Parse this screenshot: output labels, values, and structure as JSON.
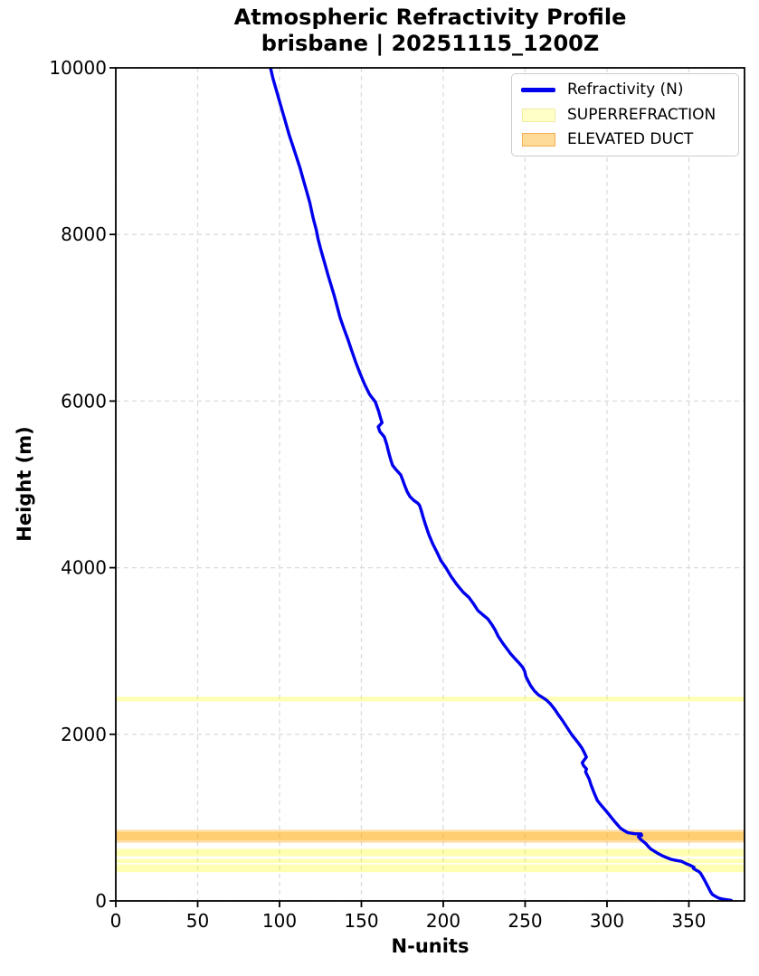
{
  "chart_data": {
    "type": "line",
    "title": "Atmospheric Refractivity Profile",
    "subtitle": "brisbane | 20251115_1200Z",
    "xlabel": "N-units",
    "ylabel": "Height (m)",
    "xlim": [
      0,
      384
    ],
    "ylim": [
      0,
      10000
    ],
    "xticks": [
      0,
      50,
      100,
      150,
      200,
      250,
      300,
      350
    ],
    "yticks": [
      0,
      2000,
      4000,
      6000,
      8000,
      10000
    ],
    "grid": true,
    "grid_color": "#dcdcdc",
    "axis_color": "#000000",
    "background": "#ffffff",
    "legend": [
      {
        "label": "Refractivity (N)",
        "swatch": "line",
        "color": "#0000ee"
      },
      {
        "label": "SUPERREFRACTION",
        "swatch": "patch",
        "fill": "rgba(255,255,0,0.22)",
        "edge": "#f0ec9f"
      },
      {
        "label": "ELEVATED DUCT",
        "swatch": "patch",
        "fill": "rgba(255,165,0,0.40)",
        "edge": "#f2ae55"
      }
    ],
    "band_colors": {
      "superrefraction": "rgba(255,255,0,0.30)",
      "elevated_duct": "rgba(255,165,0,0.33)"
    },
    "bands": [
      {
        "type": "superrefraction",
        "bottom": 2396,
        "top": 2450
      },
      {
        "type": "superrefraction",
        "bottom": 535,
        "top": 625
      },
      {
        "type": "superrefraction",
        "bottom": 455,
        "top": 505
      },
      {
        "type": "superrefraction",
        "bottom": 345,
        "top": 438
      },
      {
        "type": "elevated_duct",
        "bottom": 698,
        "top": 828
      },
      {
        "type": "elevated_duct",
        "bottom": 726,
        "top": 856
      }
    ],
    "series": [
      {
        "name": "Refractivity (N)",
        "color": "#0000ee",
        "line_width": 3.4,
        "points": [
          [
            94.5,
            10000
          ],
          [
            96,
            9870
          ],
          [
            98.5,
            9700
          ],
          [
            101,
            9530
          ],
          [
            103.5,
            9360
          ],
          [
            106,
            9190
          ],
          [
            108.5,
            9040
          ],
          [
            110.5,
            8920
          ],
          [
            112.5,
            8800
          ],
          [
            114.5,
            8660
          ],
          [
            116.5,
            8520
          ],
          [
            118.5,
            8380
          ],
          [
            120.5,
            8200
          ],
          [
            122.5,
            8050
          ],
          [
            123.5,
            7950
          ],
          [
            125.5,
            7800
          ],
          [
            127.5,
            7660
          ],
          [
            129.5,
            7520
          ],
          [
            131.5,
            7390
          ],
          [
            133.5,
            7260
          ],
          [
            135,
            7150
          ],
          [
            137,
            7000
          ],
          [
            139.5,
            6860
          ],
          [
            141.8,
            6740
          ],
          [
            144,
            6610
          ],
          [
            146.5,
            6470
          ],
          [
            149,
            6340
          ],
          [
            152,
            6200
          ],
          [
            155,
            6080
          ],
          [
            158.5,
            5990
          ],
          [
            160.5,
            5880
          ],
          [
            161.8,
            5790
          ],
          [
            162.6,
            5740
          ],
          [
            160.3,
            5692
          ],
          [
            161.2,
            5635
          ],
          [
            164,
            5570
          ],
          [
            165.5,
            5480
          ],
          [
            166.6,
            5390
          ],
          [
            168,
            5290
          ],
          [
            169,
            5230
          ],
          [
            171.2,
            5175
          ],
          [
            174,
            5115
          ],
          [
            175.2,
            5055
          ],
          [
            176.5,
            4985
          ],
          [
            178,
            4910
          ],
          [
            179.6,
            4855
          ],
          [
            182,
            4808
          ],
          [
            184.6,
            4772
          ],
          [
            185.6,
            4745
          ],
          [
            186.6,
            4685
          ],
          [
            187.6,
            4615
          ],
          [
            189.2,
            4515
          ],
          [
            191.2,
            4395
          ],
          [
            193.6,
            4285
          ],
          [
            196.2,
            4185
          ],
          [
            198.6,
            4085
          ],
          [
            201.6,
            4000
          ],
          [
            204.6,
            3900
          ],
          [
            208.2,
            3800
          ],
          [
            212.2,
            3705
          ],
          [
            215.6,
            3645
          ],
          [
            218.2,
            3575
          ],
          [
            221.2,
            3485
          ],
          [
            224.6,
            3428
          ],
          [
            227.2,
            3385
          ],
          [
            229.6,
            3318
          ],
          [
            231.6,
            3255
          ],
          [
            233.6,
            3175
          ],
          [
            236.2,
            3098
          ],
          [
            238.6,
            3035
          ],
          [
            241.2,
            2965
          ],
          [
            243.6,
            2912
          ],
          [
            246.2,
            2858
          ],
          [
            248.6,
            2802
          ],
          [
            249.8,
            2752
          ],
          [
            250.4,
            2698
          ],
          [
            251.6,
            2648
          ],
          [
            253.2,
            2588
          ],
          [
            255.6,
            2522
          ],
          [
            258.2,
            2472
          ],
          [
            260.6,
            2442
          ],
          [
            263.2,
            2408
          ],
          [
            265.6,
            2362
          ],
          [
            268.2,
            2298
          ],
          [
            270.2,
            2238
          ],
          [
            272.6,
            2172
          ],
          [
            274.6,
            2112
          ],
          [
            276.6,
            2052
          ],
          [
            278.6,
            1992
          ],
          [
            280.6,
            1942
          ],
          [
            282.6,
            1892
          ],
          [
            284.6,
            1838
          ],
          [
            286.1,
            1782
          ],
          [
            287.4,
            1726
          ],
          [
            284.9,
            1660
          ],
          [
            285.7,
            1622
          ],
          [
            287.5,
            1585
          ],
          [
            286.9,
            1548
          ],
          [
            289.1,
            1465
          ],
          [
            290.3,
            1390
          ],
          [
            292.1,
            1298
          ],
          [
            294.1,
            1206
          ],
          [
            296.1,
            1156
          ],
          [
            298.3,
            1106
          ],
          [
            300.6,
            1052
          ],
          [
            302.6,
            1002
          ],
          [
            304.4,
            960
          ],
          [
            306.3,
            916
          ],
          [
            308.3,
            872
          ],
          [
            310.6,
            843
          ],
          [
            312.6,
            820
          ],
          [
            316.9,
            807
          ],
          [
            320.9,
            804
          ],
          [
            321.2,
            786
          ],
          [
            319.2,
            770
          ],
          [
            320.1,
            748
          ],
          [
            321.8,
            719
          ],
          [
            323.7,
            688
          ],
          [
            325.3,
            652
          ],
          [
            326.8,
            622
          ],
          [
            329.2,
            594
          ],
          [
            330.9,
            572
          ],
          [
            333.6,
            544
          ],
          [
            336.2,
            522
          ],
          [
            339.1,
            500
          ],
          [
            342.1,
            486
          ],
          [
            345.4,
            476
          ],
          [
            346.9,
            461
          ],
          [
            348.4,
            446
          ],
          [
            350.3,
            432
          ],
          [
            351.8,
            418
          ],
          [
            353.1,
            404
          ],
          [
            352.8,
            391
          ],
          [
            353.7,
            377
          ],
          [
            355.1,
            363
          ],
          [
            356.3,
            350
          ],
          [
            357.3,
            327
          ],
          [
            358.3,
            293
          ],
          [
            359.3,
            259
          ],
          [
            360.3,
            223
          ],
          [
            361.3,
            186
          ],
          [
            362.3,
            148
          ],
          [
            363.2,
            110
          ],
          [
            364.4,
            77
          ],
          [
            366.4,
            53
          ],
          [
            368.4,
            33
          ],
          [
            370.5,
            23
          ],
          [
            372.6,
            15
          ],
          [
            374.6,
            10
          ],
          [
            375.9,
            7
          ]
        ]
      }
    ]
  }
}
